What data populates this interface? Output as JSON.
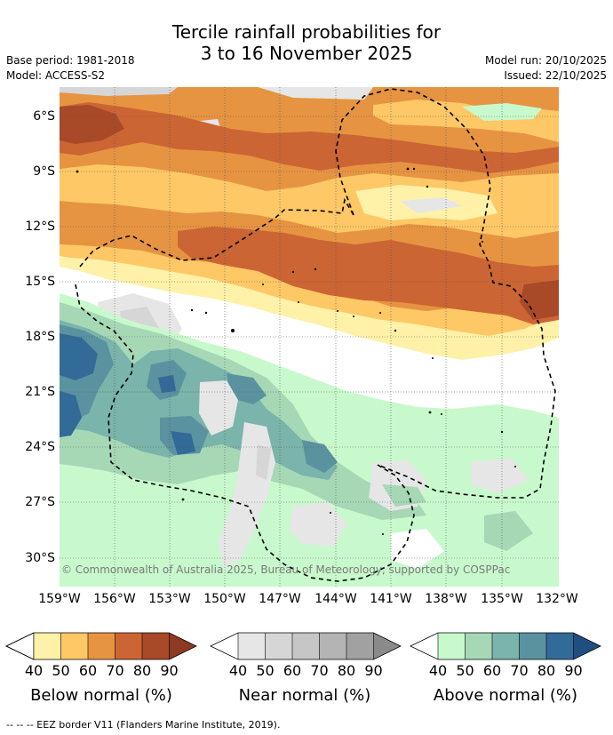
{
  "title": {
    "line1": "Tercile rainfall probabilities for",
    "line2": "3 to 16 November 2025"
  },
  "meta": {
    "base_period": "Base period: 1981-2018",
    "model": "Model: ACCESS-S2",
    "model_run": "Model run: 20/10/2025",
    "issued": "Issued: 22/10/2025"
  },
  "map": {
    "lat_labels": [
      "6°S",
      "9°S",
      "12°S",
      "15°S",
      "18°S",
      "21°S",
      "24°S",
      "27°S",
      "30°S"
    ],
    "lon_labels": [
      "159°W",
      "156°W",
      "153°W",
      "150°W",
      "147°W",
      "144°W",
      "141°W",
      "138°W",
      "135°W",
      "132°W"
    ],
    "copyright": "© Commonwealth of Australia 2025, Bureau of Meteorology, supported by COSPPac",
    "region_lat_range": [
      -31.5,
      -4.5
    ],
    "region_lon_range": [
      -159,
      -132
    ]
  },
  "legend": {
    "ticks": [
      "40",
      "50",
      "60",
      "70",
      "80",
      "90"
    ],
    "below": {
      "title": "Below normal (%)",
      "colors": [
        "#fff1a8",
        "#fdc865",
        "#e69442",
        "#cc6534",
        "#a84928",
        "#8c3a22"
      ]
    },
    "near": {
      "title": "Near normal (%)",
      "colors": [
        "#e6e6e6",
        "#d6d6d6",
        "#c6c6c6",
        "#b4b4b4",
        "#a1a1a1",
        "#8a8a8a"
      ]
    },
    "above": {
      "title": "Above normal (%)",
      "colors": [
        "#c8f9cc",
        "#a6d8b6",
        "#7ab4aa",
        "#5a92a0",
        "#326a98",
        "#1f4f80"
      ]
    }
  },
  "footer": "--  --  -- EEZ border V11 (Flanders Marine Institute, 2019)."
}
